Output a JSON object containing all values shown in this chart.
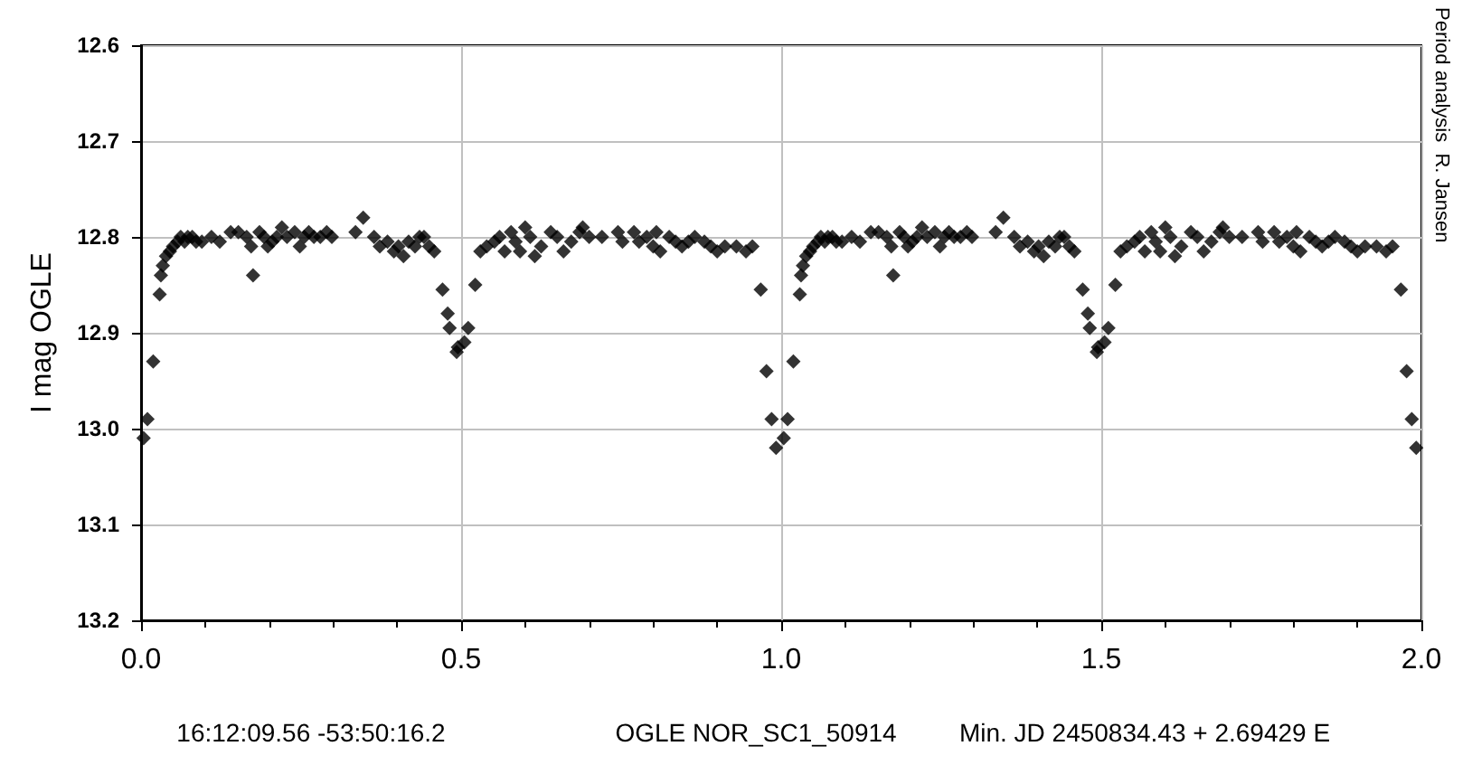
{
  "chart_data": {
    "type": "scatter",
    "ylabel": "I mag OGLE",
    "annotations": [
      "16:12:09.56 -53:50:16.2",
      "OGLE NOR_SC1_50914",
      "Min. JD 2450834.43 + 2.69429 E",
      "Period analysis  R. Jansen"
    ],
    "series": [
      {
        "color": "#000000",
        "x": [
          0.004,
          0.01,
          0.019,
          0.029,
          0.031,
          0.034,
          0.039,
          0.045,
          0.05,
          0.057,
          0.062,
          0.068,
          0.073,
          0.08,
          0.086,
          0.095,
          0.11,
          0.123,
          0.14,
          0.152,
          0.165,
          0.172,
          0.175,
          0.185,
          0.192,
          0.198,
          0.205,
          0.212,
          0.22,
          0.228,
          0.24,
          0.248,
          0.255,
          0.262,
          0.27,
          0.28,
          0.29,
          0.298,
          0.335,
          0.347,
          0.364,
          0.373,
          0.385,
          0.395,
          0.402,
          0.41,
          0.418,
          0.428,
          0.435,
          0.442,
          0.45,
          0.458,
          0.471,
          0.479,
          0.482,
          0.493,
          0.495,
          0.505,
          0.511,
          0.522,
          0.53,
          0.54,
          0.552,
          0.56,
          0.568,
          0.578,
          0.585,
          0.592,
          0.6,
          0.608,
          0.615,
          0.625,
          0.64,
          0.65,
          0.66,
          0.672,
          0.685,
          0.69,
          0.7,
          0.72,
          0.745,
          0.752,
          0.77,
          0.778,
          0.79,
          0.8,
          0.805,
          0.811,
          0.825,
          0.835,
          0.845,
          0.855,
          0.865,
          0.88,
          0.89,
          0.9,
          0.912,
          0.93,
          0.945,
          0.955,
          0.968,
          0.977,
          0.985,
          0.992,
          1.004,
          1.01,
          1.019,
          1.029,
          1.031,
          1.034,
          1.039,
          1.045,
          1.05,
          1.057,
          1.062,
          1.068,
          1.073,
          1.08,
          1.086,
          1.095,
          1.11,
          1.123,
          1.14,
          1.152,
          1.165,
          1.172,
          1.175,
          1.185,
          1.192,
          1.198,
          1.205,
          1.212,
          1.22,
          1.228,
          1.24,
          1.248,
          1.255,
          1.262,
          1.27,
          1.28,
          1.29,
          1.298,
          1.335,
          1.347,
          1.364,
          1.373,
          1.385,
          1.395,
          1.402,
          1.41,
          1.418,
          1.428,
          1.435,
          1.442,
          1.45,
          1.458,
          1.471,
          1.479,
          1.482,
          1.493,
          1.495,
          1.505,
          1.511,
          1.522,
          1.53,
          1.54,
          1.552,
          1.56,
          1.568,
          1.578,
          1.585,
          1.592,
          1.6,
          1.608,
          1.615,
          1.625,
          1.64,
          1.65,
          1.66,
          1.672,
          1.685,
          1.69,
          1.7,
          1.72,
          1.745,
          1.752,
          1.77,
          1.778,
          1.79,
          1.8,
          1.805,
          1.811,
          1.825,
          1.835,
          1.845,
          1.855,
          1.865,
          1.88,
          1.89,
          1.9,
          1.912,
          1.93,
          1.945,
          1.955,
          1.968,
          1.977,
          1.985,
          1.992
        ],
        "values": [
          13.01,
          12.99,
          12.93,
          12.86,
          12.84,
          12.83,
          12.82,
          12.815,
          12.81,
          12.805,
          12.8,
          12.805,
          12.8,
          12.8,
          12.805,
          12.805,
          12.8,
          12.805,
          12.795,
          12.795,
          12.8,
          12.81,
          12.84,
          12.795,
          12.8,
          12.81,
          12.805,
          12.8,
          12.79,
          12.8,
          12.795,
          12.81,
          12.8,
          12.795,
          12.8,
          12.8,
          12.795,
          12.8,
          12.795,
          12.78,
          12.8,
          12.81,
          12.805,
          12.815,
          12.81,
          12.82,
          12.805,
          12.81,
          12.8,
          12.8,
          12.81,
          12.815,
          12.855,
          12.88,
          12.895,
          12.92,
          12.915,
          12.91,
          12.895,
          12.85,
          12.815,
          12.81,
          12.805,
          12.8,
          12.815,
          12.795,
          12.805,
          12.815,
          12.79,
          12.8,
          12.82,
          12.81,
          12.795,
          12.8,
          12.815,
          12.805,
          12.795,
          12.79,
          12.8,
          12.8,
          12.795,
          12.805,
          12.795,
          12.805,
          12.8,
          12.81,
          12.795,
          12.815,
          12.8,
          12.805,
          12.81,
          12.805,
          12.8,
          12.805,
          12.81,
          12.815,
          12.81,
          12.81,
          12.815,
          12.81,
          12.855,
          12.94,
          12.99,
          13.02,
          13.01,
          12.99,
          12.93,
          12.86,
          12.84,
          12.83,
          12.82,
          12.815,
          12.81,
          12.805,
          12.8,
          12.805,
          12.8,
          12.8,
          12.805,
          12.805,
          12.8,
          12.805,
          12.795,
          12.795,
          12.8,
          12.81,
          12.84,
          12.795,
          12.8,
          12.81,
          12.805,
          12.8,
          12.79,
          12.8,
          12.795,
          12.81,
          12.8,
          12.795,
          12.8,
          12.8,
          12.795,
          12.8,
          12.795,
          12.78,
          12.8,
          12.81,
          12.805,
          12.815,
          12.81,
          12.82,
          12.805,
          12.81,
          12.8,
          12.8,
          12.81,
          12.815,
          12.855,
          12.88,
          12.895,
          12.92,
          12.915,
          12.91,
          12.895,
          12.85,
          12.815,
          12.81,
          12.805,
          12.8,
          12.815,
          12.795,
          12.805,
          12.815,
          12.79,
          12.8,
          12.82,
          12.81,
          12.795,
          12.8,
          12.815,
          12.805,
          12.795,
          12.79,
          12.8,
          12.8,
          12.795,
          12.805,
          12.795,
          12.805,
          12.8,
          12.81,
          12.795,
          12.815,
          12.8,
          12.805,
          12.81,
          12.805,
          12.8,
          12.805,
          12.81,
          12.815,
          12.81,
          12.81,
          12.815,
          12.81,
          12.855,
          12.94,
          12.99,
          13.02
        ]
      }
    ],
    "xlim": [
      0,
      2
    ],
    "xticks": [
      {
        "value": 0,
        "label": "0.0"
      },
      {
        "value": 0.1,
        "label": null
      },
      {
        "value": 0.2,
        "label": null
      },
      {
        "value": 0.3,
        "label": null
      },
      {
        "value": 0.4,
        "label": null
      },
      {
        "value": 0.5,
        "label": "0.5"
      },
      {
        "value": 0.6,
        "label": null
      },
      {
        "value": 0.7,
        "label": null
      },
      {
        "value": 0.8,
        "label": null
      },
      {
        "value": 0.9,
        "label": null
      },
      {
        "value": 1,
        "label": "1.0"
      },
      {
        "value": 1.1,
        "label": null
      },
      {
        "value": 1.2,
        "label": null
      },
      {
        "value": 1.3,
        "label": null
      },
      {
        "value": 1.4,
        "label": null
      },
      {
        "value": 1.5,
        "label": "1.5"
      },
      {
        "value": 1.6,
        "label": null
      },
      {
        "value": 1.7,
        "label": null
      },
      {
        "value": 1.8,
        "label": null
      },
      {
        "value": 1.9,
        "label": null
      },
      {
        "value": 2,
        "label": "2.0"
      }
    ],
    "ylim": [
      13.2,
      12.6
    ],
    "yticks": [
      12.6,
      12.7,
      12.8,
      12.9,
      {
        "value": 13,
        "label": "13.0"
      },
      13.1,
      13.2
    ],
    "grid": true,
    "marker": "diamond"
  }
}
